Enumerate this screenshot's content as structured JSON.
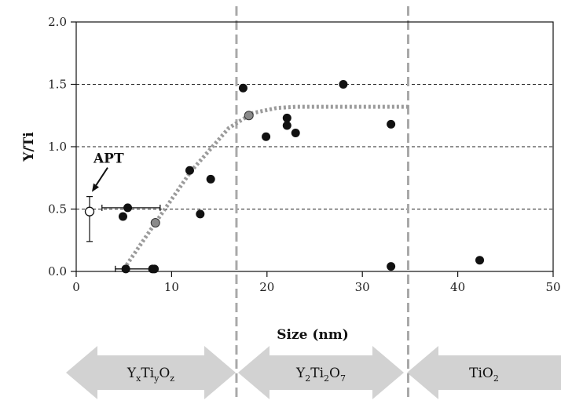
{
  "chart_data": {
    "type": "scatter",
    "xlabel": "Size (nm)",
    "ylabel": "Y/Ti",
    "xlim": [
      0,
      50
    ],
    "ylim": [
      0,
      2.0
    ],
    "x_ticks": [
      "0",
      "10",
      "20",
      "30",
      "40",
      "50"
    ],
    "y_ticks": [
      "0.0",
      "0.5",
      "1.0",
      "1.5",
      "2.0"
    ],
    "grid": {
      "y_dashed_at": [
        0.5,
        1.0,
        1.5
      ]
    },
    "phase_boundaries_x": [
      16.8,
      34.8
    ],
    "series": [
      {
        "marker": "filled-circle",
        "color": "#111111",
        "points": [
          [
            4.9,
            0.44
          ],
          [
            5.2,
            0.02
          ],
          [
            5.4,
            0.51
          ],
          [
            8.0,
            0.02
          ],
          [
            8.2,
            0.02
          ],
          [
            11.9,
            0.81
          ],
          [
            13.0,
            0.46
          ],
          [
            14.1,
            0.74
          ],
          [
            17.5,
            1.47
          ],
          [
            19.9,
            1.08
          ],
          [
            22.1,
            1.17
          ],
          [
            22.1,
            1.23
          ],
          [
            23.0,
            1.11
          ],
          [
            28.0,
            1.5
          ],
          [
            33.0,
            1.18
          ],
          [
            33.0,
            0.04
          ],
          [
            42.3,
            0.09
          ]
        ]
      },
      {
        "marker": "grey-circle",
        "color": "#8a8a8a",
        "points": [
          [
            8.3,
            0.39
          ],
          [
            18.1,
            1.25
          ]
        ]
      },
      {
        "marker": "open-circle",
        "color": "#111111",
        "points": [
          [
            1.4,
            0.48
          ]
        ],
        "yerr": [
          0.12
        ],
        "annotation": "APT"
      }
    ],
    "horizontal_error_bars": [
      {
        "y": 0.51,
        "x_from": 2.7,
        "x_to": 8.8
      },
      {
        "y": 0.02,
        "x_from": 4.1,
        "x_to": 8.4
      }
    ],
    "trend_line": {
      "style": "dotted",
      "color": "#9b9b9b",
      "points": [
        [
          5.0,
          0.02
        ],
        [
          8.3,
          0.39
        ],
        [
          12.0,
          0.8
        ],
        [
          16.0,
          1.15
        ],
        [
          18.5,
          1.27
        ],
        [
          21.0,
          1.31
        ],
        [
          23.0,
          1.32
        ],
        [
          35.0,
          1.32
        ]
      ]
    },
    "phases": [
      {
        "base": "Y",
        "s1": "x",
        "mid": "Ti",
        "s2": "y",
        "end": "O",
        "s3": "z",
        "x_from": 0,
        "x_to": 16.8
      },
      {
        "base": "Y",
        "s1": "2",
        "mid": "Ti",
        "s2": "2",
        "end": "O",
        "s3": "7",
        "x_from": 16.8,
        "x_to": 34.8
      },
      {
        "base": "TiO",
        "s1": "2",
        "mid": "",
        "s2": "",
        "end": "",
        "s3": "",
        "x_from": 34.8,
        "x_to": 50
      }
    ]
  }
}
